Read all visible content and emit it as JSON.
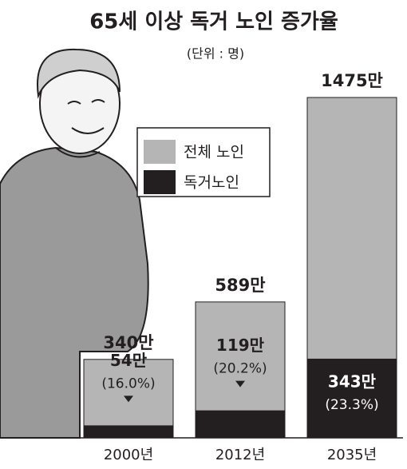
{
  "chart_data": {
    "type": "bar",
    "title": "65세 이상 독거 노인 증가율",
    "subtitle": "(단위 : 명)",
    "categories": [
      "2000년",
      "2012년",
      "2035년"
    ],
    "series": [
      {
        "name": "전체 노인",
        "color": "#b5b5b5",
        "values": [
          340,
          589,
          1475
        ],
        "value_labels": [
          "340만",
          "589만",
          "1475만"
        ]
      },
      {
        "name": "독거노인",
        "color": "#231f20",
        "values": [
          54,
          119,
          343
        ],
        "value_labels": [
          "54만",
          "119만",
          "343만"
        ]
      }
    ],
    "shares": {
      "values": [
        16.0,
        20.2,
        23.3
      ],
      "value_labels": [
        "(16.0%)",
        "(20.2%)",
        "(23.3%)"
      ]
    }
  }
}
